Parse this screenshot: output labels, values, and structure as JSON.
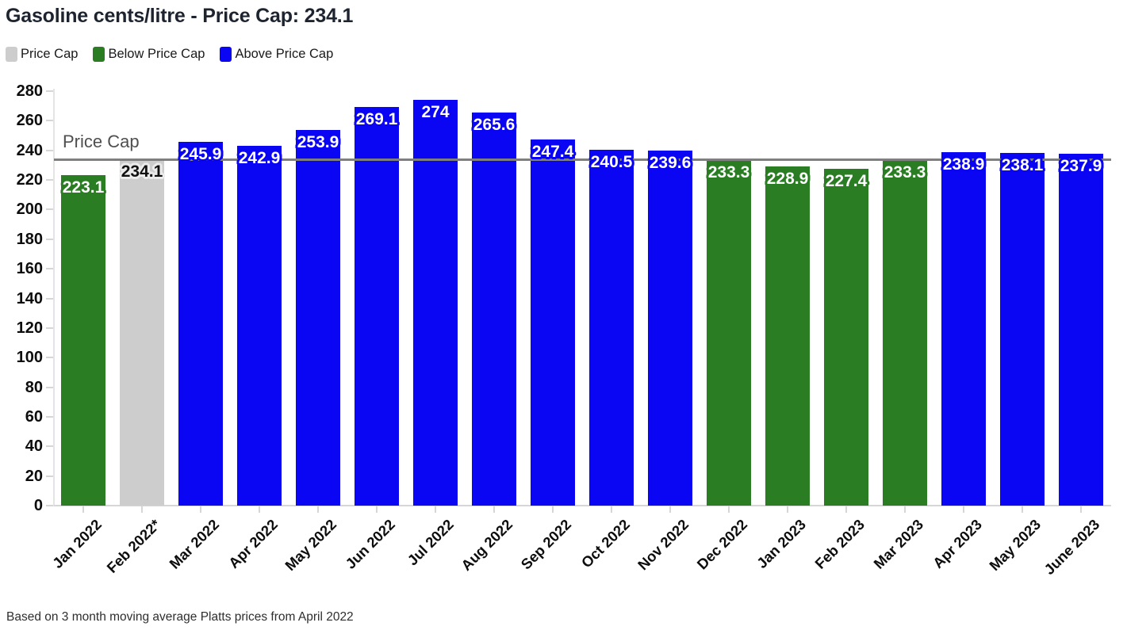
{
  "title": "Gasoline cents/litre - Price Cap: 234.1",
  "legend": {
    "items": [
      {
        "label": "Price Cap",
        "type": "cap"
      },
      {
        "label": "Below Price Cap",
        "type": "below"
      },
      {
        "label": "Above Price Cap",
        "type": "above"
      }
    ]
  },
  "annotation": {
    "price_cap_label": "Price Cap"
  },
  "footnote": "Based on 3 month moving average Platts prices from April 2022",
  "colors": {
    "cap_bar": "#cdcdcd",
    "below_bar": "#2a7d23",
    "above_bar": "#0a05f2",
    "cap_line": "#7f7f7f",
    "axis": "#d6d6d6",
    "label_on_cap_bar": "#111111",
    "label_outline_on_cap_bar": "#ececec"
  },
  "chart_data": {
    "type": "bar",
    "title": "Gasoline cents/litre - Price Cap: 234.1",
    "ylabel": "",
    "xlabel": "",
    "categories": [
      "Jan 2022",
      "Feb 2022*",
      "Mar 2022",
      "Apr 2022",
      "May 2022",
      "Jun 2022",
      "Jul 2022",
      "Aug 2022",
      "Sep 2022",
      "Oct 2022",
      "Nov 2022",
      "Dec 2022",
      "Jan 2023",
      "Feb 2023",
      "Mar 2023",
      "Apr 2023",
      "May 2023",
      "June 2023"
    ],
    "values": [
      223.1,
      234.1,
      245.9,
      242.9,
      253.9,
      269.1,
      274,
      265.6,
      247.4,
      240.5,
      239.6,
      233.3,
      228.9,
      227.4,
      233.3,
      238.9,
      238.1,
      237.9
    ],
    "value_labels": [
      "223.1",
      "234.1",
      "245.9",
      "242.9",
      "253.9",
      "269.1",
      "274",
      "265.6",
      "247.4",
      "240.5",
      "239.6",
      "233.3",
      "228.9",
      "227.4",
      "233.3",
      "238.9",
      "238.1",
      "237.9"
    ],
    "bar_types": [
      "below",
      "cap",
      "above",
      "above",
      "above",
      "above",
      "above",
      "above",
      "above",
      "above",
      "above",
      "below",
      "below",
      "below",
      "below",
      "above",
      "above",
      "above"
    ],
    "price_cap": 234.1,
    "price_cap_line_label": "Price Cap",
    "ylim": [
      0,
      280
    ],
    "ytick_step": 20,
    "grid": false,
    "legend_position": "top-left",
    "footnote": "Based on 3 month moving average Platts prices from April 2022"
  }
}
